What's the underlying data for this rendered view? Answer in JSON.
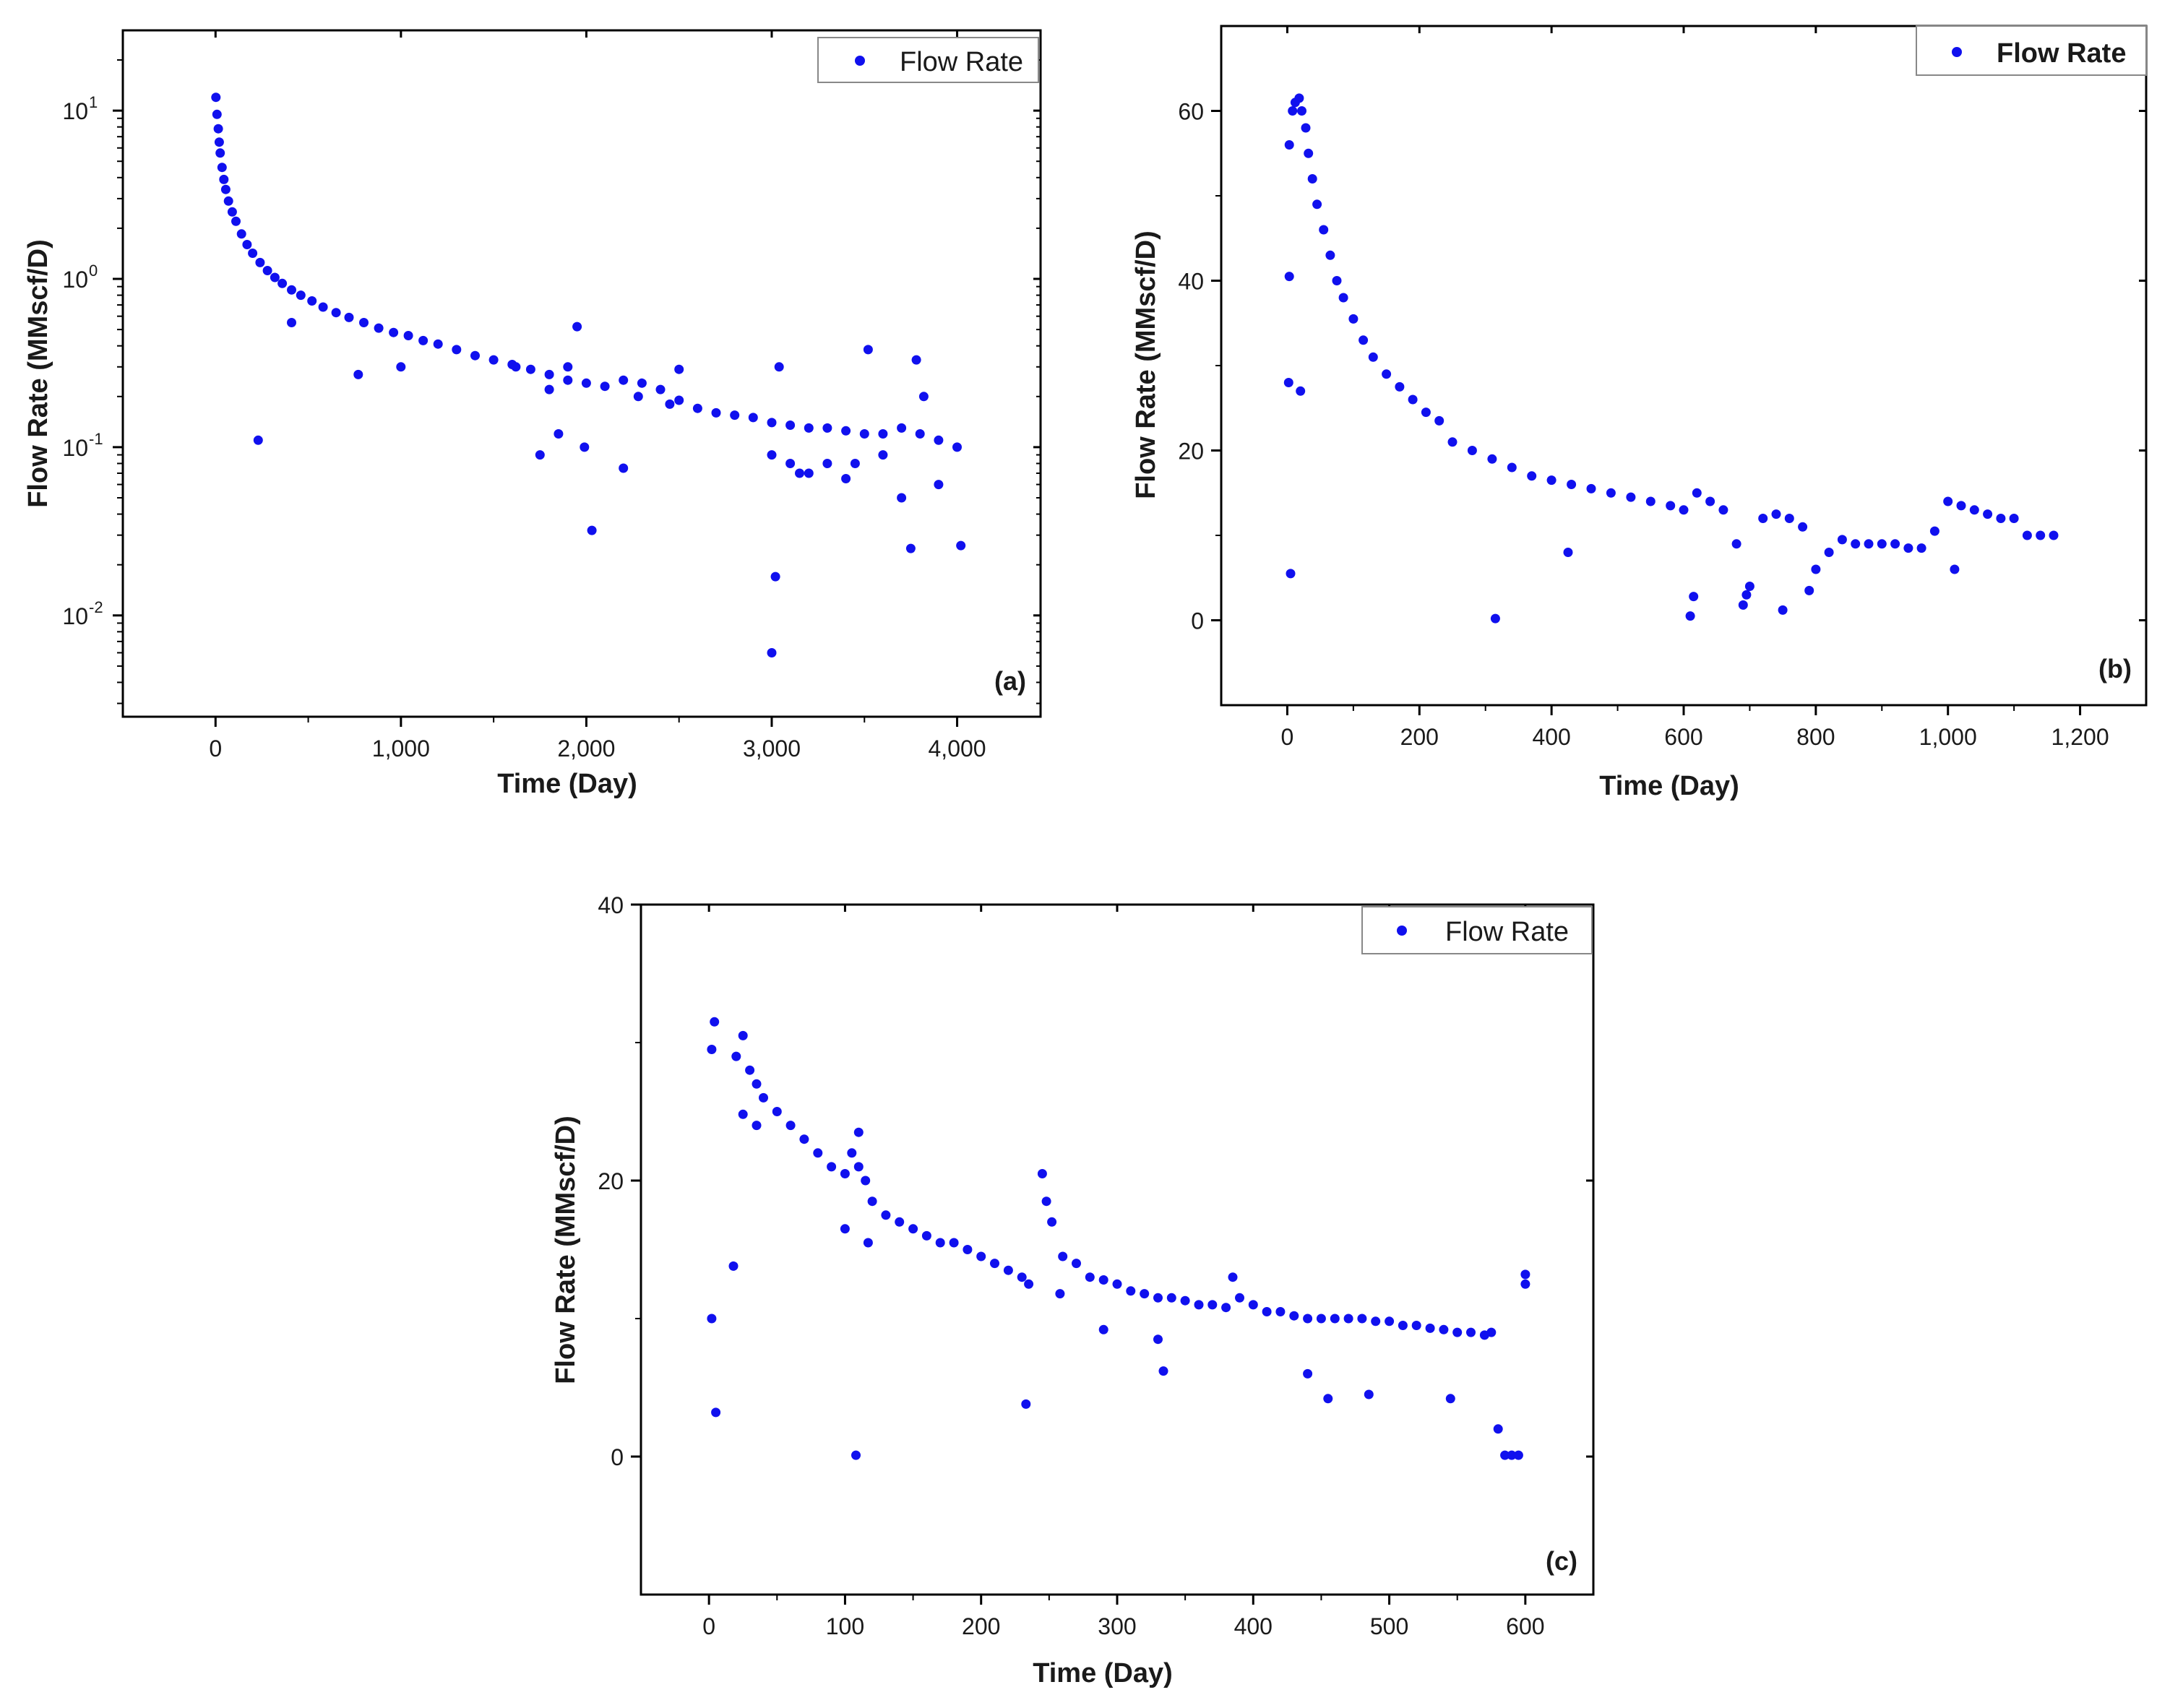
{
  "chart_data": [
    {
      "type": "scatter",
      "panel_label": "(a)",
      "title": "",
      "xlabel": "Time (Day)",
      "ylabel": "Flow Rate (MMscf/D)",
      "xlim": [
        -500,
        4450
      ],
      "ylim": [
        0.0025,
        30
      ],
      "yscale": "log",
      "xticks": [
        {
          "value": 0,
          "label": "0"
        },
        {
          "value": 1000,
          "label": "1,000"
        },
        {
          "value": 2000,
          "label": "2,000"
        },
        {
          "value": 3000,
          "label": "3,000"
        },
        {
          "value": 4000,
          "label": "4,000"
        }
      ],
      "yticks": [
        {
          "value": 10,
          "base": "10",
          "exp": "1"
        },
        {
          "value": 1,
          "base": "10",
          "exp": "0"
        },
        {
          "value": 0.1,
          "base": "10",
          "exp": "-1"
        },
        {
          "value": 0.01,
          "base": "10",
          "exp": "-2"
        }
      ],
      "legend": {
        "label": "Flow Rate",
        "position": "top-right"
      },
      "series_color": "#1010ee",
      "series": [
        {
          "name": "Flow Rate",
          "x": [
            2,
            8,
            15,
            20,
            25,
            35,
            45,
            55,
            70,
            90,
            110,
            140,
            170,
            200,
            240,
            280,
            320,
            360,
            410,
            460,
            520,
            580,
            650,
            720,
            800,
            880,
            960,
            1040,
            1120,
            1200,
            1300,
            1400,
            1500,
            1600,
            1700,
            1800,
            1900,
            2000,
            2100,
            2200,
            2300,
            2400,
            2500,
            2600,
            2700,
            2800,
            2900,
            3000,
            3100,
            3200,
            3300,
            3400,
            3500,
            3600,
            3700,
            3800,
            3900,
            4000,
            230,
            410,
            770,
            1000,
            1620,
            1750,
            1850,
            1950,
            1990,
            2030,
            2200,
            2280,
            3000,
            3020,
            3040,
            3100,
            3200,
            3300,
            3400,
            3520,
            3600,
            3700,
            3750,
            3780,
            3900,
            4020,
            2500,
            2450,
            1900,
            1800,
            3000,
            3150,
            3450,
            3820
          ],
          "y": [
            12,
            9.5,
            7.8,
            6.5,
            5.6,
            4.6,
            3.9,
            3.4,
            2.9,
            2.5,
            2.2,
            1.85,
            1.6,
            1.42,
            1.25,
            1.12,
            1.02,
            0.94,
            0.86,
            0.8,
            0.74,
            0.68,
            0.63,
            0.59,
            0.55,
            0.51,
            0.48,
            0.46,
            0.43,
            0.41,
            0.38,
            0.35,
            0.33,
            0.31,
            0.29,
            0.27,
            0.25,
            0.24,
            0.23,
            0.25,
            0.24,
            0.22,
            0.19,
            0.17,
            0.16,
            0.155,
            0.15,
            0.14,
            0.135,
            0.13,
            0.13,
            0.125,
            0.12,
            0.12,
            0.13,
            0.12,
            0.11,
            0.1,
            0.11,
            0.55,
            0.27,
            0.3,
            0.3,
            0.09,
            0.12,
            0.52,
            0.1,
            0.032,
            0.075,
            0.2,
            0.006,
            0.017,
            0.3,
            0.08,
            0.07,
            0.08,
            0.065,
            0.38,
            0.09,
            0.05,
            0.025,
            0.33,
            0.06,
            0.026,
            0.29,
            0.18,
            0.3,
            0.22,
            0.09,
            0.07,
            0.08,
            0.2
          ]
        }
      ]
    },
    {
      "type": "scatter",
      "panel_label": "(b)",
      "title": "",
      "xlabel": "Time (Day)",
      "ylabel": "Flow Rate (MMscf/D)",
      "xlim": [
        -100,
        1300
      ],
      "ylim": [
        -10,
        70
      ],
      "xticks": [
        {
          "value": 0,
          "label": "0"
        },
        {
          "value": 200,
          "label": "200"
        },
        {
          "value": 400,
          "label": "400"
        },
        {
          "value": 600,
          "label": "600"
        },
        {
          "value": 800,
          "label": "800"
        },
        {
          "value": 1000,
          "label": "1,000"
        },
        {
          "value": 1200,
          "label": "1,200"
        }
      ],
      "yticks": [
        {
          "value": 0,
          "label": "0"
        },
        {
          "value": 20,
          "label": "20"
        },
        {
          "value": 40,
          "label": "40"
        },
        {
          "value": 60,
          "label": "60"
        }
      ],
      "legend": {
        "label": "Flow Rate",
        "position": "top-right"
      },
      "series_color": "#1010ee",
      "series": [
        {
          "name": "Flow Rate",
          "x": [
            3,
            8,
            12,
            18,
            22,
            28,
            32,
            38,
            45,
            55,
            65,
            75,
            85,
            100,
            115,
            130,
            150,
            170,
            190,
            210,
            230,
            250,
            280,
            310,
            340,
            370,
            400,
            430,
            460,
            490,
            520,
            550,
            580,
            600,
            620,
            640,
            660,
            680,
            700,
            720,
            740,
            760,
            780,
            800,
            820,
            840,
            860,
            880,
            900,
            920,
            940,
            960,
            980,
            1000,
            1020,
            1040,
            1060,
            1080,
            1100,
            1120,
            1140,
            1160,
            2,
            3,
            5,
            20,
            315,
            425,
            610,
            615,
            690,
            695,
            750,
            790,
            1010
          ],
          "y": [
            56,
            60,
            61,
            61.5,
            60,
            58,
            55,
            52,
            49,
            46,
            43,
            40,
            38,
            35.5,
            33,
            31,
            29,
            27.5,
            26,
            24.5,
            23.5,
            21,
            20,
            19,
            18,
            17,
            16.5,
            16,
            15.5,
            15,
            14.5,
            14,
            13.5,
            13,
            15,
            14,
            13,
            9,
            4,
            12,
            12.5,
            12,
            11,
            6,
            8,
            9.5,
            9,
            9,
            9,
            9,
            8.5,
            8.5,
            10.5,
            14,
            13.5,
            13,
            12.5,
            12,
            12,
            10,
            10,
            10,
            28,
            40.5,
            5.5,
            27,
            0.2,
            8,
            0.5,
            2.8,
            1.8,
            3,
            1.2,
            3.5,
            6
          ]
        }
      ]
    },
    {
      "type": "scatter",
      "panel_label": "(c)",
      "title": "",
      "xlabel": "Time (Day)",
      "ylabel": "Flow Rate (MMscf/D)",
      "xlim": [
        -50,
        650
      ],
      "ylim": [
        -10,
        40
      ],
      "xticks": [
        {
          "value": 0,
          "label": "0"
        },
        {
          "value": 100,
          "label": "100"
        },
        {
          "value": 200,
          "label": "200"
        },
        {
          "value": 300,
          "label": "300"
        },
        {
          "value": 400,
          "label": "400"
        },
        {
          "value": 500,
          "label": "500"
        },
        {
          "value": 600,
          "label": "600"
        }
      ],
      "yticks": [
        {
          "value": 0,
          "label": "0"
        },
        {
          "value": 20,
          "label": "20"
        },
        {
          "value": 40,
          "label": "40"
        }
      ],
      "legend": {
        "label": "Flow Rate",
        "position": "top-right"
      },
      "series_color": "#1010ee",
      "series": [
        {
          "name": "Flow Rate",
          "x": [
            2,
            4,
            20,
            25,
            30,
            35,
            40,
            50,
            60,
            70,
            80,
            90,
            100,
            105,
            110,
            115,
            120,
            130,
            140,
            150,
            160,
            170,
            180,
            190,
            200,
            210,
            220,
            230,
            245,
            248,
            252,
            260,
            270,
            280,
            290,
            300,
            310,
            320,
            330,
            340,
            350,
            360,
            370,
            380,
            385,
            390,
            400,
            410,
            420,
            430,
            440,
            450,
            460,
            470,
            480,
            490,
            500,
            510,
            520,
            530,
            540,
            550,
            560,
            570,
            575,
            580,
            585,
            590,
            595,
            600,
            2,
            5,
            18,
            25,
            35,
            100,
            108,
            110,
            117,
            233,
            235,
            258,
            290,
            330,
            334,
            440,
            455,
            485,
            545,
            600
          ],
          "y": [
            29.5,
            31.5,
            29,
            30.5,
            28,
            27,
            26,
            25,
            24,
            23,
            22,
            21,
            20.5,
            22,
            21,
            20,
            18.5,
            17.5,
            17,
            16.5,
            16,
            15.5,
            15.5,
            15,
            14.5,
            14,
            13.5,
            13,
            20.5,
            18.5,
            17,
            14.5,
            14,
            13,
            12.8,
            12.5,
            12,
            11.8,
            11.5,
            11.5,
            11.3,
            11,
            11,
            10.8,
            13,
            11.5,
            11,
            10.5,
            10.5,
            10.2,
            10,
            10,
            10,
            10,
            10,
            9.8,
            9.8,
            9.5,
            9.5,
            9.3,
            9.2,
            9,
            9,
            8.8,
            9,
            2,
            0.1,
            0.1,
            0.1,
            12.5,
            10,
            3.2,
            13.8,
            24.8,
            24,
            16.5,
            0.1,
            23.5,
            15.5,
            3.8,
            12.5,
            11.8,
            9.2,
            8.5,
            6.2,
            6,
            4.2,
            4.5,
            4.2,
            13.2
          ]
        }
      ]
    }
  ]
}
